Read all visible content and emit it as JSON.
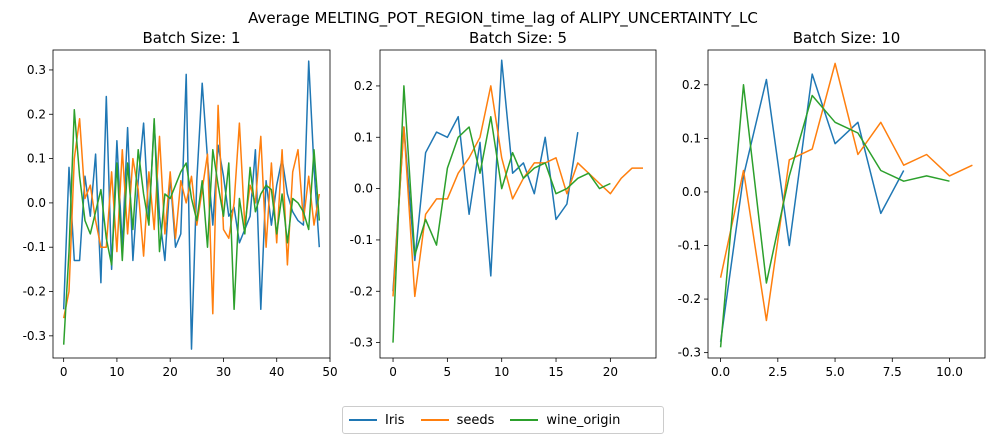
{
  "chart_data": {
    "type": "line",
    "title": "Average MELTING_POT_REGION_time_lag of ALIPY_UNCERTAINTY_LC",
    "colors": {
      "Iris": "#1f77b4",
      "seeds": "#ff7f0e",
      "wine_origin": "#2ca02c"
    },
    "legend": {
      "placement": "bottom-center",
      "entries": [
        "Iris",
        "seeds",
        "wine_origin"
      ]
    },
    "grid": false,
    "panels": [
      {
        "title": "Batch Size: 1",
        "xlim": [
          -2,
          50
        ],
        "ylim": [
          -0.35,
          0.345
        ],
        "xticks": [
          0,
          10,
          20,
          30,
          40,
          50
        ],
        "yticks": [
          -0.3,
          -0.2,
          -0.1,
          0.0,
          0.1,
          0.2,
          0.3
        ],
        "series": [
          {
            "name": "Iris",
            "values": [
              -0.24,
              0.08,
              -0.13,
              -0.13,
              0.06,
              -0.03,
              0.11,
              -0.18,
              0.24,
              -0.15,
              0.14,
              -0.1,
              0.17,
              -0.13,
              0.05,
              0.18,
              -0.04,
              0.18,
              -0.03,
              -0.13,
              0.06,
              -0.1,
              -0.07,
              0.29,
              -0.33,
              0.05,
              0.27,
              0.1,
              -0.05,
              0.13,
              0.06,
              -0.03,
              -0.01,
              -0.09,
              -0.06,
              -0.03,
              0.12,
              -0.24,
              0.05,
              -0.05,
              0.04,
              0.1,
              0.02,
              -0.02,
              -0.04,
              -0.05,
              0.32,
              0.08,
              -0.1
            ]
          },
          {
            "name": "seeds",
            "values": [
              -0.26,
              -0.2,
              0.1,
              0.19,
              0.01,
              0.04,
              -0.04,
              -0.1,
              -0.1,
              0.07,
              -0.11,
              0.12,
              -0.07,
              0.1,
              0.03,
              -0.12,
              0.07,
              -0.06,
              0.15,
              -0.07,
              0.07,
              -0.08,
              0.05,
              0.0,
              0.06,
              -0.05,
              0.03,
              0.11,
              -0.25,
              0.22,
              -0.06,
              -0.08,
              0.0,
              0.18,
              -0.05,
              0.04,
              0.0,
              0.15,
              -0.1,
              0.09,
              -0.09,
              0.12,
              -0.14,
              0.07,
              0.12,
              -0.04,
              0.06,
              -0.05,
              0.02
            ]
          },
          {
            "name": "wine_origin",
            "values": [
              -0.32,
              -0.11,
              0.21,
              0.06,
              -0.04,
              -0.07,
              -0.02,
              0.03,
              -0.08,
              -0.14,
              0.09,
              -0.13,
              0.09,
              -0.06,
              0.12,
              0.02,
              -0.05,
              0.19,
              -0.11,
              0.02,
              0.01,
              0.04,
              0.07,
              0.09,
              0.01,
              -0.04,
              0.05,
              -0.1,
              0.12,
              0.04,
              -0.03,
              0.09,
              -0.24,
              0.01,
              -0.07,
              0.08,
              -0.02,
              0.02,
              0.04,
              0.03,
              -0.07,
              0.02,
              -0.09,
              0.01,
              0.0,
              -0.02,
              -0.06,
              0.12,
              -0.04
            ]
          }
        ]
      },
      {
        "title": "Batch Size: 5",
        "xlim": [
          -1.2,
          24.2
        ],
        "ylim": [
          -0.33,
          0.27
        ],
        "xticks": [
          0,
          5,
          10,
          15,
          20
        ],
        "yticks": [
          -0.3,
          -0.2,
          -0.1,
          0.0,
          0.1,
          0.2
        ],
        "series": [
          {
            "name": "Iris",
            "values": [
              -0.2,
              0.12,
              -0.14,
              0.07,
              0.11,
              0.1,
              0.14,
              -0.05,
              0.09,
              -0.17,
              0.25,
              0.03,
              0.05,
              -0.01,
              0.1,
              -0.06,
              -0.03,
              0.11
            ]
          },
          {
            "name": "seeds",
            "values": [
              -0.21,
              0.12,
              -0.21,
              -0.05,
              -0.02,
              -0.02,
              0.03,
              0.06,
              0.1,
              0.2,
              0.06,
              -0.02,
              0.02,
              0.05,
              0.05,
              0.06,
              -0.01,
              0.05,
              0.03,
              0.01,
              -0.01,
              0.02,
              0.04,
              0.04
            ]
          },
          {
            "name": "wine_origin",
            "values": [
              -0.3,
              0.2,
              -0.13,
              -0.06,
              -0.11,
              0.04,
              0.1,
              0.12,
              0.03,
              0.14,
              0.0,
              0.07,
              0.02,
              0.04,
              0.05,
              -0.01,
              0.0,
              0.02,
              0.03,
              0.0,
              0.01
            ]
          }
        ]
      },
      {
        "title": "Batch Size: 10",
        "xlim": [
          -0.55,
          11.55
        ],
        "ylim": [
          -0.31,
          0.265
        ],
        "xticks": [
          0.0,
          2.5,
          5.0,
          7.5,
          10.0
        ],
        "ytickvalues": [
          -0.3,
          -0.2,
          -0.1,
          0.0,
          0.1,
          0.2
        ],
        "series": [
          {
            "name": "Iris",
            "values": [
              -0.28,
              0.03,
              0.21,
              -0.1,
              0.22,
              0.09,
              0.13,
              -0.04,
              0.04
            ]
          },
          {
            "name": "seeds",
            "values": [
              -0.16,
              0.04,
              -0.24,
              0.06,
              0.08,
              0.24,
              0.07,
              0.13,
              0.05,
              0.07,
              0.03,
              0.05
            ]
          },
          {
            "name": "wine_origin",
            "values": [
              -0.29,
              0.2,
              -0.17,
              0.03,
              0.18,
              0.13,
              0.11,
              0.04,
              0.02,
              0.03,
              0.02
            ]
          }
        ]
      }
    ]
  }
}
